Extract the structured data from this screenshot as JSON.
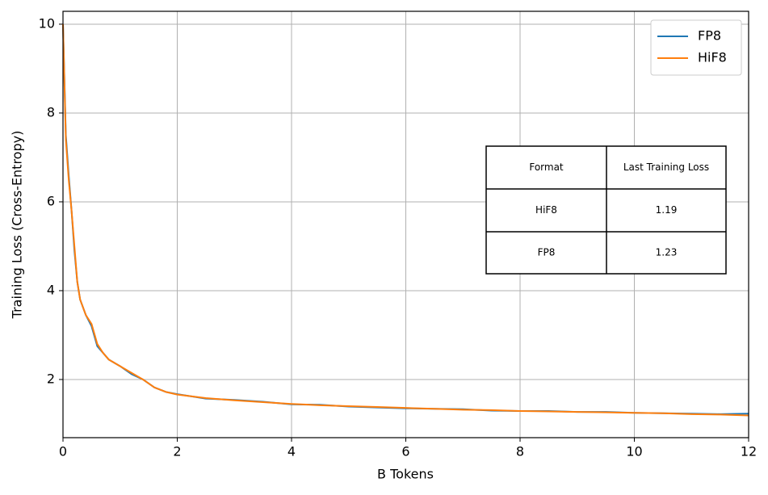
{
  "chart_data": {
    "type": "line",
    "x_label": "B Tokens",
    "y_label": "Training Loss (Cross-Entropy)",
    "x": [
      0,
      0.05,
      0.1,
      0.15,
      0.2,
      0.25,
      0.3,
      0.4,
      0.5,
      0.6,
      0.7,
      0.8,
      1.0,
      1.2,
      1.4,
      1.6,
      1.8,
      2.0,
      2.5,
      3,
      3.5,
      4,
      4.5,
      5,
      5.5,
      6,
      6.5,
      7,
      7.5,
      8,
      8.5,
      9,
      9.5,
      10,
      10.5,
      11,
      11.5,
      12
    ],
    "series": [
      {
        "name": "FP8",
        "color": "#1f77b4",
        "values": [
          10,
          7.5,
          6.6,
          5.8,
          4.9,
          4.2,
          3.8,
          3.45,
          3.2,
          2.75,
          2.6,
          2.45,
          2.3,
          2.12,
          2.0,
          1.82,
          1.72,
          1.67,
          1.57,
          1.54,
          1.5,
          1.44,
          1.43,
          1.39,
          1.37,
          1.35,
          1.34,
          1.33,
          1.3,
          1.29,
          1.29,
          1.27,
          1.27,
          1.25,
          1.24,
          1.23,
          1.22,
          1.23
        ]
      },
      {
        "name": "HiF8",
        "color": "#ff7f0e",
        "values": [
          10,
          7.4,
          6.5,
          5.8,
          5.0,
          4.2,
          3.8,
          3.45,
          3.25,
          2.8,
          2.6,
          2.45,
          2.3,
          2.15,
          2.0,
          1.82,
          1.72,
          1.66,
          1.58,
          1.53,
          1.49,
          1.45,
          1.42,
          1.4,
          1.38,
          1.36,
          1.34,
          1.32,
          1.31,
          1.29,
          1.28,
          1.27,
          1.26,
          1.25,
          1.24,
          1.22,
          1.21,
          1.19
        ]
      }
    ],
    "xlim": [
      0,
      12
    ],
    "xticks": [
      0,
      2,
      4,
      6,
      8,
      10,
      12
    ],
    "ylim": [
      0.69,
      10.29
    ],
    "yticks": [
      2,
      4,
      6,
      8,
      10
    ],
    "grid": true,
    "legend": "upper right",
    "table": {
      "header": [
        "Format",
        "Last Training Loss"
      ],
      "rows": [
        [
          "HiF8",
          "1.19"
        ],
        [
          "FP8",
          "1.23"
        ]
      ]
    }
  }
}
